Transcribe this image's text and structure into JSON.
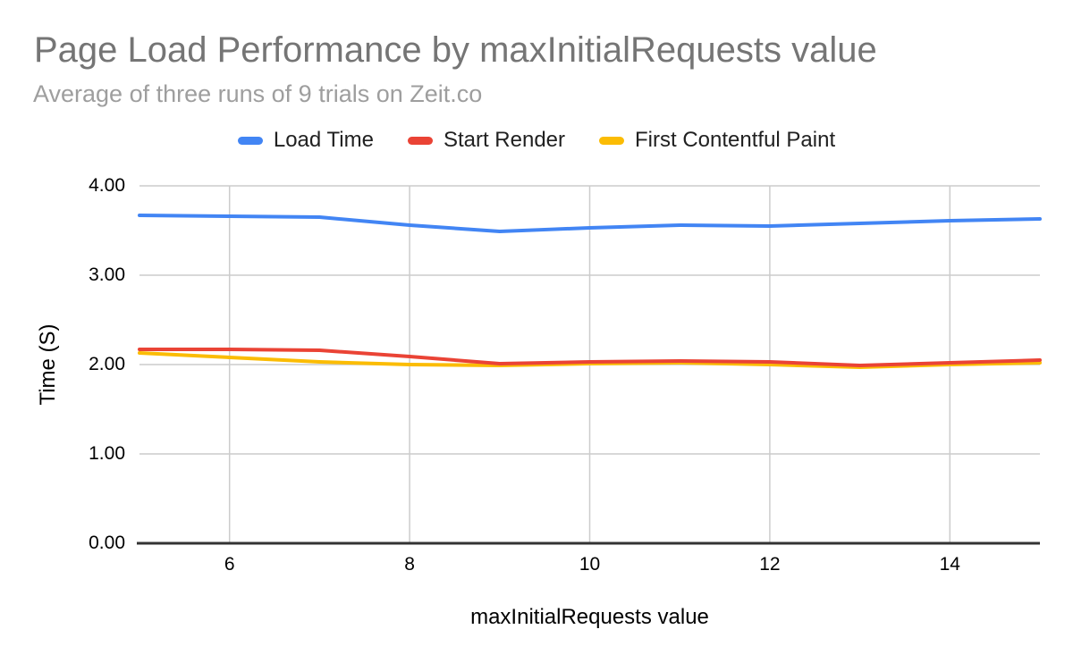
{
  "header": {
    "title": "Page Load Performance by maxInitialRequests value",
    "subtitle": "Average of three runs of 9 trials on Zeit.co"
  },
  "colors": {
    "background": "#ffffff",
    "title_text": "#757575",
    "subtitle_text": "#9e9e9e",
    "legend_text": "#212121",
    "tick_text": "#000000",
    "grid": "#cccccc",
    "axis_line": "#333333",
    "series_blue": "#4285f4",
    "series_red": "#ea4335",
    "series_yellow": "#fbbc04"
  },
  "chart_data": {
    "type": "line",
    "title": "Page Load Performance by maxInitialRequests value",
    "subtitle": "Average of three runs of 9 trials on Zeit.co",
    "xlabel": "maxInitialRequests value",
    "ylabel": "Time (S)",
    "legend_position": "top",
    "grid": true,
    "xlim": [
      5,
      15
    ],
    "ylim": [
      0,
      4
    ],
    "x_ticks": [
      6,
      8,
      10,
      12,
      14
    ],
    "y_ticks": [
      0,
      1,
      2,
      3,
      4
    ],
    "y_tick_decimals": 2,
    "x": [
      5,
      6,
      7,
      8,
      9,
      10,
      11,
      12,
      13,
      14,
      15
    ],
    "series": [
      {
        "name": "Load Time",
        "color": "#4285f4",
        "values": [
          3.67,
          3.66,
          3.65,
          3.56,
          3.49,
          3.53,
          3.56,
          3.55,
          3.58,
          3.61,
          3.63
        ]
      },
      {
        "name": "Start Render",
        "color": "#ea4335",
        "values": [
          2.17,
          2.17,
          2.16,
          2.09,
          2.01,
          2.03,
          2.04,
          2.03,
          1.99,
          2.02,
          2.05
        ]
      },
      {
        "name": "First Contentful Paint",
        "color": "#fbbc04",
        "values": [
          2.13,
          2.08,
          2.03,
          2.0,
          1.99,
          2.01,
          2.02,
          2.0,
          1.97,
          2.0,
          2.02
        ]
      }
    ]
  }
}
